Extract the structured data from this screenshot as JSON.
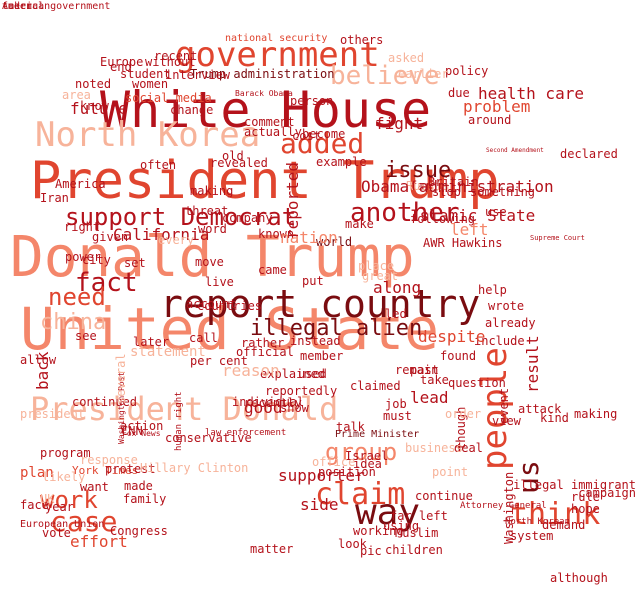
{
  "colors": {
    "darkest": "#7a0c10",
    "dark": "#b4121b",
    "mid": "#e0452f",
    "salmon": "#f4866a",
    "light": "#f7b39a",
    "pale": "#fbd3c2"
  },
  "words": [
    {
      "text": "United State",
      "color": "salmon"
    },
    {
      "text": "Donald Trump",
      "color": "salmon"
    },
    {
      "text": "President Trump",
      "color": "mid"
    },
    {
      "text": "White House",
      "color": "dark"
    },
    {
      "text": "President Donald",
      "color": "light"
    },
    {
      "text": "report country",
      "color": "darkest"
    },
    {
      "text": "government",
      "color": "mid"
    },
    {
      "text": "North Korea",
      "color": "light"
    },
    {
      "text": "added",
      "color": "mid"
    },
    {
      "text": "believe",
      "color": "light"
    },
    {
      "text": "issue",
      "color": "darkest"
    },
    {
      "text": "support Democrat",
      "color": "dark"
    },
    {
      "text": "another",
      "color": "dark"
    },
    {
      "text": "fact",
      "color": "dark"
    },
    {
      "text": "need",
      "color": "mid"
    },
    {
      "text": "china",
      "color": "light"
    },
    {
      "text": "work",
      "color": "mid"
    },
    {
      "text": "case",
      "color": "mid"
    },
    {
      "text": "group",
      "color": "salmon"
    },
    {
      "text": "claim",
      "color": "mid"
    },
    {
      "text": "way",
      "color": "darkest"
    },
    {
      "text": "think",
      "color": "mid"
    },
    {
      "text": "illegal alien",
      "color": "darkest"
    },
    {
      "text": "people",
      "color": "mid"
    },
    {
      "text": "us",
      "color": "darkest"
    },
    {
      "text": "Islamic State",
      "color": "dark"
    },
    {
      "text": "Trump administration",
      "color": "darkest"
    },
    {
      "text": "Barack Obama",
      "color": "dark"
    },
    {
      "text": "national security",
      "color": "mid"
    },
    {
      "text": "social media",
      "color": "mid"
    },
    {
      "text": "Prime Minister",
      "color": "darkest"
    },
    {
      "text": "law enforcement",
      "color": "dark"
    },
    {
      "text": "Attorney General",
      "color": "dark"
    },
    {
      "text": "North Korean",
      "color": "dark"
    },
    {
      "text": "European Union",
      "color": "dark"
    },
    {
      "text": "York Times",
      "color": "mid"
    },
    {
      "text": "human right",
      "color": "dark"
    },
    {
      "text": "Fox News",
      "color": "dark"
    },
    {
      "text": "Washington Post",
      "color": "dark"
    },
    {
      "text": "Supreme Court",
      "color": "dark"
    },
    {
      "text": "Second Amendment",
      "color": "dark"
    },
    {
      "text": "official",
      "color": "dark"
    },
    {
      "text": "statement",
      "color": "light"
    },
    {
      "text": "world",
      "color": "darkest"
    },
    {
      "text": "make",
      "color": "dark"
    },
    {
      "text": "company",
      "color": "dark"
    },
    {
      "text": "America",
      "color": "dark"
    },
    {
      "text": "member",
      "color": "dark"
    },
    {
      "text": "used",
      "color": "dark"
    },
    {
      "text": "found",
      "color": "dark"
    },
    {
      "text": "wrote",
      "color": "dark"
    },
    {
      "text": "already",
      "color": "dark"
    },
    {
      "text": "include",
      "color": "dark"
    },
    {
      "text": "despite",
      "color": "mid"
    },
    {
      "text": "continued",
      "color": "dark"
    },
    {
      "text": "continue",
      "color": "dark"
    },
    {
      "text": "attack",
      "color": "dark"
    },
    {
      "text": "plan",
      "color": "mid"
    },
    {
      "text": "want",
      "color": "dark"
    },
    {
      "text": "far",
      "color": "dark"
    },
    {
      "text": "left",
      "color": "salmon"
    },
    {
      "text": "help",
      "color": "dark"
    },
    {
      "text": "use",
      "color": "dark"
    },
    {
      "text": "see",
      "color": "dark"
    },
    {
      "text": "call",
      "color": "dark"
    },
    {
      "text": "show",
      "color": "dark"
    },
    {
      "text": "claimed",
      "color": "dark"
    },
    {
      "text": "remain",
      "color": "dark"
    },
    {
      "text": "pic",
      "color": "dark"
    },
    {
      "text": "although",
      "color": "dark"
    },
    {
      "text": "result",
      "color": "dark"
    },
    {
      "text": "event",
      "color": "dark"
    },
    {
      "text": "question",
      "color": "dark"
    },
    {
      "text": "though",
      "color": "dark"
    },
    {
      "text": "back",
      "color": "dark"
    },
    {
      "text": "known",
      "color": "dark"
    },
    {
      "text": "put",
      "color": "dark"
    },
    {
      "text": "reportedly",
      "color": "dark"
    },
    {
      "text": "conservative",
      "color": "dark"
    },
    {
      "text": "individual",
      "color": "dark"
    },
    {
      "text": "protest",
      "color": "dark"
    },
    {
      "text": "CNN",
      "color": "dark"
    },
    {
      "text": "Congress",
      "color": "dark"
    },
    {
      "text": "vote",
      "color": "dark"
    },
    {
      "text": "effort",
      "color": "mid"
    },
    {
      "text": "made",
      "color": "dark"
    },
    {
      "text": "family",
      "color": "dark"
    },
    {
      "text": "year",
      "color": "dark"
    },
    {
      "text": "children",
      "color": "dark"
    },
    {
      "text": "look",
      "color": "dark"
    },
    {
      "text": "using",
      "color": "dark"
    },
    {
      "text": "Muslim",
      "color": "dark"
    },
    {
      "text": "later",
      "color": "dark"
    },
    {
      "text": "per cent",
      "color": "dark"
    },
    {
      "text": "countries",
      "color": "dark"
    },
    {
      "text": "rather",
      "color": "dark"
    },
    {
      "text": "instead",
      "color": "dark"
    },
    {
      "text": "explained",
      "color": "dark"
    },
    {
      "text": "nation",
      "color": "salmon"
    },
    {
      "text": "came",
      "color": "dark"
    },
    {
      "text": "live",
      "color": "dark"
    },
    {
      "text": "move",
      "color": "dark"
    },
    {
      "text": "AWR Hawkins",
      "color": "dark"
    },
    {
      "text": "following",
      "color": "dark"
    },
    {
      "text": "stop",
      "color": "dark"
    },
    {
      "text": "due",
      "color": "dark"
    },
    {
      "text": "around",
      "color": "dark"
    },
    {
      "text": "problem",
      "color": "mid"
    },
    {
      "text": "asked",
      "color": "light"
    },
    {
      "text": "others",
      "color": "dark"
    },
    {
      "text": "policy",
      "color": "dark"
    },
    {
      "text": "person",
      "color": "dark"
    },
    {
      "text": "know",
      "color": "dark"
    },
    {
      "text": "student",
      "color": "dark"
    },
    {
      "text": "end",
      "color": "dark"
    },
    {
      "text": "Europe",
      "color": "dark"
    },
    {
      "text": "future",
      "color": "dark"
    },
    {
      "text": "area",
      "color": "light"
    },
    {
      "text": "noted",
      "color": "dark"
    },
    {
      "text": "often",
      "color": "dark"
    },
    {
      "text": "word",
      "color": "dark"
    },
    {
      "text": "example",
      "color": "dark"
    },
    {
      "text": "become",
      "color": "dark"
    },
    {
      "text": "revealed",
      "color": "dark"
    },
    {
      "text": "comment",
      "color": "dark"
    },
    {
      "text": "power",
      "color": "dark"
    },
    {
      "text": "Iran",
      "color": "dark"
    },
    {
      "text": "city",
      "color": "dark"
    },
    {
      "text": "set",
      "color": "dark"
    },
    {
      "text": "California",
      "color": "dark"
    },
    {
      "text": "every",
      "color": "light"
    },
    {
      "text": "threat",
      "color": "dark"
    },
    {
      "text": "making",
      "color": "dark"
    },
    {
      "text": "likely",
      "color": "light"
    },
    {
      "text": "face",
      "color": "dark"
    },
    {
      "text": "action",
      "color": "dark"
    },
    {
      "text": "right",
      "color": "dark"
    },
    {
      "text": "good",
      "color": "dark"
    },
    {
      "text": "place",
      "color": "light"
    },
    {
      "text": "along",
      "color": "dark"
    },
    {
      "text": "great",
      "color": "light"
    },
    {
      "text": "led",
      "color": "dark"
    },
    {
      "text": "job",
      "color": "dark"
    },
    {
      "text": "lead",
      "color": "dark"
    },
    {
      "text": "order",
      "color": "light"
    },
    {
      "text": "take",
      "color": "dark"
    },
    {
      "text": "past",
      "color": "dark"
    },
    {
      "text": "must",
      "color": "dark"
    },
    {
      "text": "talk",
      "color": "dark"
    },
    {
      "text": "deal",
      "color": "dark"
    },
    {
      "text": "side",
      "color": "dark"
    },
    {
      "text": "position",
      "color": "dark"
    },
    {
      "text": "point",
      "color": "light"
    },
    {
      "text": "idea",
      "color": "dark"
    },
    {
      "text": "Israel",
      "color": "dark"
    },
    {
      "text": "office",
      "color": "light"
    },
    {
      "text": "business",
      "color": "light"
    },
    {
      "text": "campaign",
      "color": "dark"
    },
    {
      "text": "illegal immigrant",
      "color": "dark"
    },
    {
      "text": "hope",
      "color": "dark"
    },
    {
      "text": "rule",
      "color": "dark"
    },
    {
      "text": "demand",
      "color": "dark"
    },
    {
      "text": "system",
      "color": "dark"
    },
    {
      "text": "recently",
      "color": "dark"
    },
    {
      "text": "kind",
      "color": "dark"
    },
    {
      "text": "reported",
      "color": "dark"
    },
    {
      "text": "Washington",
      "color": "dark"
    },
    {
      "text": "Russia",
      "color": "light"
    },
    {
      "text": "Obama administration",
      "color": "dark"
    },
    {
      "text": "Britain",
      "color": "dark"
    },
    {
      "text": "earlier",
      "color": "light"
    },
    {
      "text": "given",
      "color": "dark"
    },
    {
      "text": "view",
      "color": "dark"
    },
    {
      "text": "fight",
      "color": "dark"
    },
    {
      "text": "UK",
      "color": "light"
    },
    {
      "text": "president",
      "color": "light"
    },
    {
      "text": "program",
      "color": "dark"
    },
    {
      "text": "supporter",
      "color": "dark"
    },
    {
      "text": "allow",
      "color": "dark"
    },
    {
      "text": "reason",
      "color": "light"
    },
    {
      "text": "account",
      "color": "dark"
    },
    {
      "text": "several",
      "color": "light"
    },
    {
      "text": "recent",
      "color": "dark"
    },
    {
      "text": "without",
      "color": "dark"
    },
    {
      "text": "interview",
      "color": "dark"
    },
    {
      "text": "women",
      "color": "dark"
    },
    {
      "text": "change",
      "color": "dark"
    },
    {
      "text": "actually",
      "color": "dark"
    },
    {
      "text": "old",
      "color": "dark"
    },
    {
      "text": "cost",
      "color": "dark"
    },
    {
      "text": "health care",
      "color": "dark"
    },
    {
      "text": "declared",
      "color": "dark"
    },
    {
      "text": "response",
      "color": "light"
    },
    {
      "text": "something",
      "color": "dark"
    },
    {
      "text": "Hillary Clinton",
      "color": "light"
    },
    {
      "text": "far left",
      "color": "dark"
    },
    {
      "text": "matter",
      "color": "dark"
    },
    {
      "text": "working",
      "color": "dark"
    },
    {
      "text": "making",
      "color": "dark"
    },
    {
      "text": "American",
      "color": "dark"
    },
    {
      "text": "taken",
      "color": "dark"
    },
    {
      "text": "federal government",
      "color": "dark"
    }
  ]
}
